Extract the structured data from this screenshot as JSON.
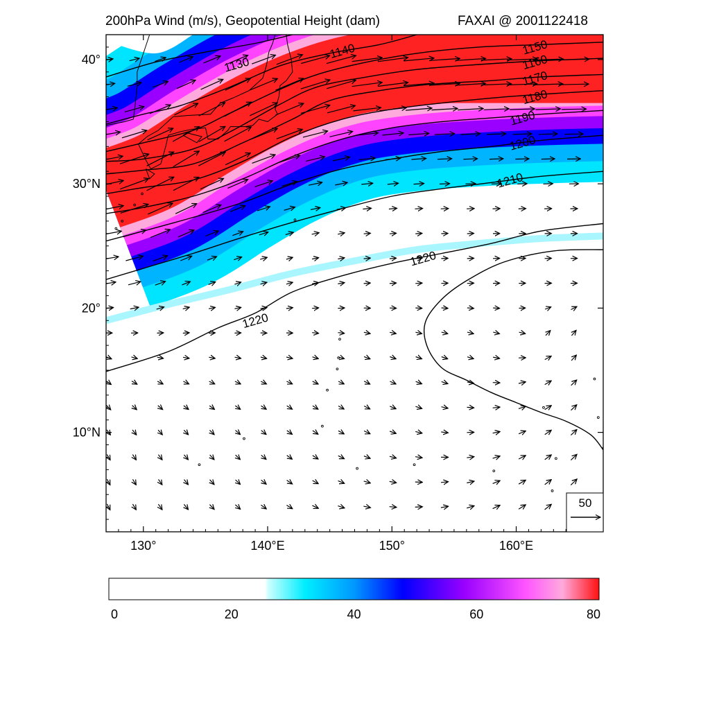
{
  "title_left": "200hPa Wind (m/s), Geopotential Height (dam)",
  "title_right": "FAXAI @ 2001122418",
  "map": {
    "lon_range": [
      127,
      167
    ],
    "lat_range": [
      2,
      42
    ],
    "lon_ticks": [
      {
        "value": 130,
        "label": "130°"
      },
      {
        "value": 140,
        "label": "140°E"
      },
      {
        "value": 150,
        "label": "150°"
      },
      {
        "value": 160,
        "label": "160°E"
      }
    ],
    "lat_ticks": [
      {
        "value": 40,
        "label": "40°"
      },
      {
        "value": 30,
        "label": "30°N"
      },
      {
        "value": 20,
        "label": "20°"
      },
      {
        "value": 10,
        "label": "10°N"
      }
    ],
    "jet_colors": {
      "white": "#ffffff",
      "cyan": "#00e5ff",
      "blue": "#0000ff",
      "purple": "#9900ff",
      "magenta": "#ff44ff",
      "pink": "#ffaadd",
      "red": "#ff2222"
    }
  },
  "contours": [
    {
      "label": "1130",
      "label_at": [
        137.5,
        39.6
      ],
      "points": [
        [
          127,
          38.6
        ],
        [
          131,
          39.8
        ],
        [
          135,
          40.6
        ],
        [
          139,
          41.3
        ],
        [
          142,
          42
        ]
      ]
    },
    {
      "label": "1140",
      "label_at": [
        146,
        40.7
      ],
      "points": [
        [
          127,
          34.8
        ],
        [
          130,
          35.6
        ],
        [
          133,
          36.3
        ],
        [
          137,
          37.8
        ],
        [
          141,
          39.5
        ],
        [
          145,
          40.5
        ],
        [
          149,
          41.2
        ],
        [
          152,
          42
        ]
      ]
    },
    {
      "label": "1150",
      "label_at": [
        161.5,
        41.0
      ],
      "points": [
        [
          127,
          32.6
        ],
        [
          130,
          33.3
        ],
        [
          134,
          34.3
        ],
        [
          137,
          35.7
        ],
        [
          141,
          37.6
        ],
        [
          144,
          38.8
        ],
        [
          148,
          39.8
        ],
        [
          152,
          40.5
        ],
        [
          157,
          41
        ],
        [
          162,
          41.2
        ],
        [
          167,
          41.4
        ]
      ]
    },
    {
      "label": "1160",
      "label_at": [
        161.5,
        39.8
      ],
      "points": [
        [
          127,
          31.8
        ],
        [
          130,
          32
        ],
        [
          134,
          32.8
        ],
        [
          137,
          34.2
        ],
        [
          141,
          36.4
        ],
        [
          144,
          37.8
        ],
        [
          148,
          38.6
        ],
        [
          152,
          39.2
        ],
        [
          157,
          39.6
        ],
        [
          162,
          39.9
        ],
        [
          167,
          40.1
        ]
      ]
    },
    {
      "label": "1170",
      "label_at": [
        161.5,
        38.5
      ],
      "points": [
        [
          127,
          30.8
        ],
        [
          130,
          31.1
        ],
        [
          134,
          31.6
        ],
        [
          138,
          33.3
        ],
        [
          142,
          35.2
        ],
        [
          145,
          36.7
        ],
        [
          149,
          37.5
        ],
        [
          153,
          38
        ],
        [
          158,
          38.3
        ],
        [
          162,
          38.6
        ],
        [
          167,
          38.8
        ]
      ]
    },
    {
      "label": "1180",
      "label_at": [
        161.5,
        37.0
      ],
      "points": [
        [
          127,
          29.2
        ],
        [
          130,
          29.7
        ],
        [
          134,
          30.3
        ],
        [
          138,
          31.8
        ],
        [
          142,
          33.8
        ],
        [
          146,
          35.2
        ],
        [
          150,
          36
        ],
        [
          154,
          36.5
        ],
        [
          158,
          36.9
        ],
        [
          162,
          37.2
        ],
        [
          167,
          37.5
        ]
      ]
    },
    {
      "label": "1190",
      "label_at": [
        160.5,
        35.3
      ],
      "points": [
        [
          127,
          27.6
        ],
        [
          130,
          28.1
        ],
        [
          134,
          29
        ],
        [
          138,
          30.4
        ],
        [
          142,
          32.2
        ],
        [
          146,
          33.6
        ],
        [
          150,
          34.5
        ],
        [
          154,
          35
        ],
        [
          158,
          35.3
        ],
        [
          162,
          35.6
        ],
        [
          167,
          35.9
        ]
      ]
    },
    {
      "label": "1200",
      "label_at": [
        160.5,
        33.3
      ],
      "points": [
        [
          127,
          25.4
        ],
        [
          130,
          26.2
        ],
        [
          134,
          27.3
        ],
        [
          138,
          28.5
        ],
        [
          142,
          30
        ],
        [
          146,
          31.2
        ],
        [
          150,
          32
        ],
        [
          154,
          32.6
        ],
        [
          158,
          33
        ],
        [
          162,
          33.5
        ],
        [
          167,
          33.9
        ]
      ]
    },
    {
      "label": "1210",
      "label_at": [
        159.5,
        30.3
      ],
      "points": [
        [
          127,
          22.3
        ],
        [
          130,
          23.2
        ],
        [
          134,
          24.4
        ],
        [
          138,
          25.7
        ],
        [
          142,
          26.9
        ],
        [
          146,
          28
        ],
        [
          150,
          29
        ],
        [
          154,
          29.6
        ],
        [
          158,
          30.1
        ],
        [
          162,
          30.6
        ],
        [
          167,
          31
        ]
      ]
    },
    {
      "label": "1220",
      "label_at": [
        152.5,
        24.0
      ],
      "points": [
        [
          127,
          14.9
        ],
        [
          132,
          16.5
        ],
        [
          136,
          18.4
        ],
        [
          139,
          19.6
        ],
        [
          142,
          21.3
        ],
        [
          146,
          22.6
        ],
        [
          150,
          23.6
        ],
        [
          154,
          24.4
        ],
        [
          158,
          25.2
        ],
        [
          162,
          26.2
        ],
        [
          167,
          26.8
        ]
      ]
    }
  ],
  "contour_1220_closed": {
    "label": "1220",
    "label_at": [
      139.0,
      19.0
    ],
    "points": [
      [
        167,
        24.7
      ],
      [
        163,
        24.6
      ],
      [
        159,
        23.7
      ],
      [
        156,
        22.2
      ],
      [
        154,
        20.7
      ],
      [
        152.7,
        18.9
      ],
      [
        152.8,
        17.0
      ],
      [
        154,
        15.2
      ],
      [
        156,
        14.2
      ],
      [
        158,
        13.2
      ],
      [
        160,
        12.4
      ],
      [
        162,
        11.6
      ],
      [
        164,
        10.9
      ],
      [
        166,
        9.8
      ],
      [
        167,
        8.6
      ]
    ]
  },
  "reference_vector": {
    "magnitude": "50",
    "unit_label": "50"
  },
  "colorbar": {
    "min": 0,
    "max": 80,
    "ticks": [
      {
        "value": 0,
        "label": "0"
      },
      {
        "value": 20,
        "label": "20"
      },
      {
        "value": 40,
        "label": "40"
      },
      {
        "value": 60,
        "label": "60"
      },
      {
        "value": 80,
        "label": "80"
      }
    ],
    "stops": [
      {
        "value": 0,
        "color": "#ffffff"
      },
      {
        "value": 25.5,
        "color": "#ffffff"
      },
      {
        "value": 26,
        "color": "#ccffff"
      },
      {
        "value": 32,
        "color": "#00eeff"
      },
      {
        "value": 40,
        "color": "#0099ff"
      },
      {
        "value": 48,
        "color": "#0000ff"
      },
      {
        "value": 58,
        "color": "#9900ff"
      },
      {
        "value": 68,
        "color": "#ff55ff"
      },
      {
        "value": 74,
        "color": "#ffaadd"
      },
      {
        "value": 80,
        "color": "#ff1111"
      }
    ]
  }
}
